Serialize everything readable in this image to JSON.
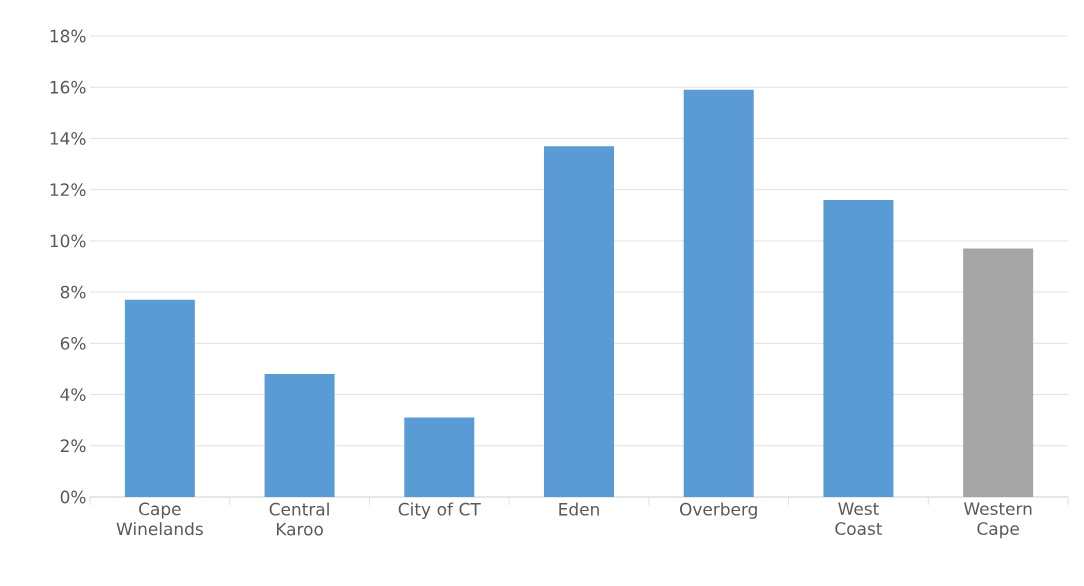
{
  "chart_data": {
    "type": "bar",
    "categories": [
      "Cape Winelands",
      "Central Karoo",
      "City of CT",
      "Eden",
      "Overberg",
      "West Coast",
      "Western Cape"
    ],
    "values": [
      7.7,
      4.8,
      3.1,
      13.7,
      15.9,
      11.6,
      9.7
    ],
    "colors": [
      "#5b9bd5",
      "#5b9bd5",
      "#5b9bd5",
      "#5b9bd5",
      "#5b9bd5",
      "#5b9bd5",
      "#a5a5a5"
    ],
    "ylim": [
      0,
      18
    ],
    "yticks": [
      {
        "value": 0,
        "label": "0%"
      },
      {
        "value": 2,
        "label": "2%"
      },
      {
        "value": 4,
        "label": "4%"
      },
      {
        "value": 6,
        "label": "6%"
      },
      {
        "value": 8,
        "label": "8%"
      },
      {
        "value": 10,
        "label": "10%"
      },
      {
        "value": 12,
        "label": "12%"
      },
      {
        "value": 14,
        "label": "14%"
      },
      {
        "value": 16,
        "label": "16%"
      },
      {
        "value": 18,
        "label": "18%"
      }
    ],
    "grid": "y"
  }
}
